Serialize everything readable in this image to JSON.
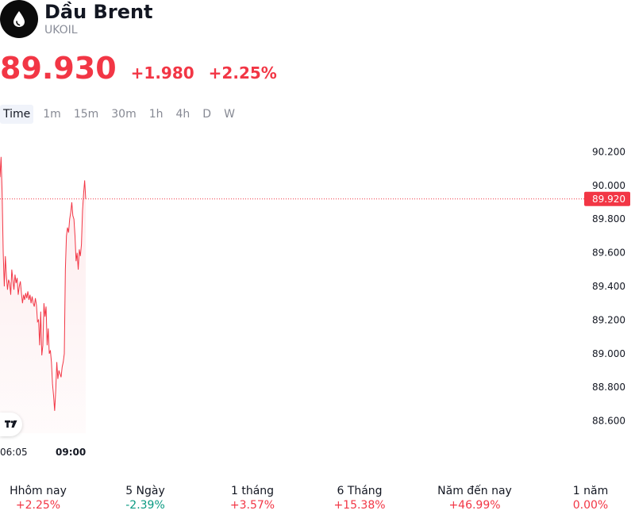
{
  "instrument": {
    "name": "Dầu Brent",
    "ticker": "UKOIL",
    "icon": "oil-drop-icon"
  },
  "quote": {
    "price": "89.930",
    "change": "+1.980",
    "change_percent": "+2.25%"
  },
  "timeframes": [
    {
      "label": "Time",
      "active": true
    },
    {
      "label": "1m",
      "active": false
    },
    {
      "label": "15m",
      "active": false
    },
    {
      "label": "30m",
      "active": false
    },
    {
      "label": "1h",
      "active": false
    },
    {
      "label": "4h",
      "active": false
    },
    {
      "label": "D",
      "active": false
    },
    {
      "label": "W",
      "active": false
    }
  ],
  "chart_data": {
    "type": "area",
    "series": [
      {
        "color": "#f23645",
        "values": [
          90.05,
          90.17,
          89.95,
          89.6,
          89.4,
          89.58,
          89.46,
          89.38,
          89.44,
          89.42,
          89.35,
          89.5,
          89.44,
          89.38,
          89.47,
          89.42,
          89.45,
          89.35,
          89.4,
          89.43,
          89.36,
          89.3,
          89.35,
          89.32,
          89.36,
          89.33,
          89.37,
          89.32,
          89.35,
          89.3,
          89.34,
          89.3,
          89.28,
          89.33,
          89.29,
          89.19,
          89.2,
          89.05,
          89.25,
          88.99,
          89.05,
          89.3,
          89.22,
          89.28,
          89.05,
          89.15,
          89.0,
          89.02,
          88.95,
          88.82,
          88.75,
          88.66,
          88.78,
          88.95,
          88.85,
          88.9,
          88.88,
          88.86,
          88.92,
          88.95,
          89.0,
          89.5,
          89.7,
          89.75,
          89.72,
          89.8,
          89.84,
          89.9,
          89.82,
          89.8,
          89.7,
          89.55,
          89.6,
          89.5,
          89.62,
          89.58,
          89.65,
          89.85,
          89.95,
          90.03,
          89.92
        ]
      }
    ],
    "last_value_label": "89.920",
    "x_tick_labels": [
      "06:05",
      "09:00"
    ],
    "y_tick_labels": [
      "90.200",
      "90.000",
      "89.800",
      "89.600",
      "89.400",
      "89.200",
      "89.000",
      "88.800",
      "88.600"
    ],
    "ylim": [
      88.5,
      90.3
    ],
    "grid": false
  },
  "performance": [
    {
      "label": "Hhôm nay",
      "value": "+2.25%",
      "dir": "up"
    },
    {
      "label": "5 Ngày",
      "value": "-2.39%",
      "dir": "down"
    },
    {
      "label": "1 tháng",
      "value": "+3.57%",
      "dir": "up"
    },
    {
      "label": "6 Tháng",
      "value": "+15.38%",
      "dir": "up"
    },
    {
      "label": "Năm đến nay",
      "value": "+46.99%",
      "dir": "up"
    },
    {
      "label": "1 năm",
      "value": "0.00%",
      "dir": "up"
    }
  ]
}
